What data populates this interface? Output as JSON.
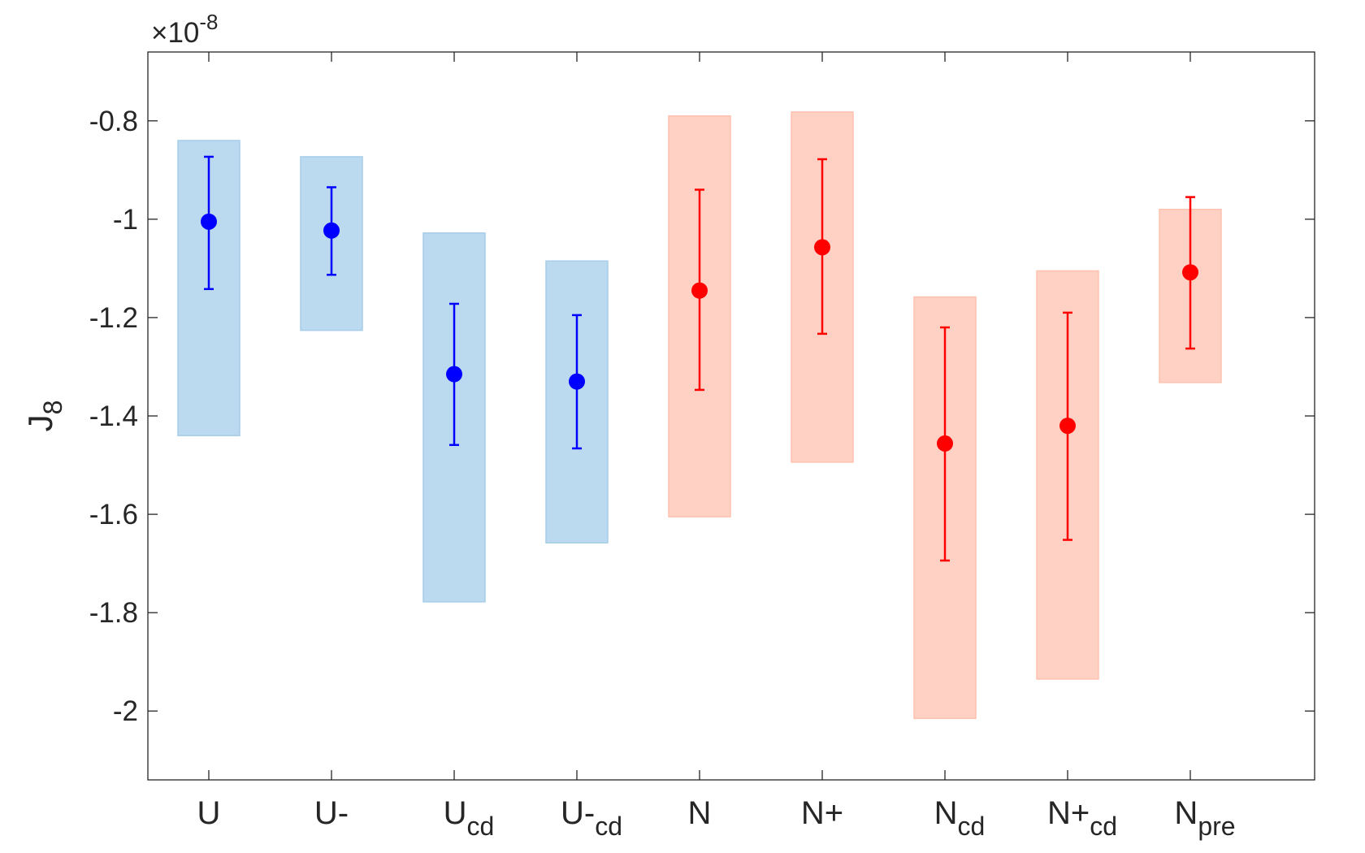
{
  "chart_data": {
    "type": "scatter",
    "ylabel": "J",
    "ylabel_subscript": "8",
    "axis_exponent": {
      "multiplier": "×10",
      "power": "-8"
    },
    "ylim": [
      -2.14,
      -0.66
    ],
    "yticks": [
      -2,
      -1.8,
      -1.6,
      -1.4,
      -1.2,
      -1,
      -0.8
    ],
    "ytick_labels": [
      "-2",
      "-1.8",
      "-1.6",
      "-1.4",
      "-1.2",
      "-1",
      "-0.8"
    ],
    "grid": false,
    "colors": {
      "blue_point": "#0000ff",
      "blue_band": "#a6cde9",
      "red_point": "#ff0000",
      "red_band": "#ffc2b0",
      "axis": "#262626"
    },
    "categories": [
      {
        "label": "U",
        "sub": "",
        "group": "blue",
        "value": -1.005,
        "err_low": -1.142,
        "err_high": -0.873,
        "band_low": -1.44,
        "band_high": -0.84
      },
      {
        "label": "U-",
        "sub": "",
        "group": "blue",
        "value": -1.023,
        "err_low": -1.113,
        "err_high": -0.935,
        "band_low": -1.226,
        "band_high": -0.873
      },
      {
        "label": "U",
        "sub": "cd",
        "group": "blue",
        "value": -1.315,
        "err_low": -1.459,
        "err_high": -1.172,
        "band_low": -1.778,
        "band_high": -1.028
      },
      {
        "label": "U-",
        "sub": "cd",
        "group": "blue",
        "value": -1.33,
        "err_low": -1.466,
        "err_high": -1.195,
        "band_low": -1.658,
        "band_high": -1.085
      },
      {
        "label": "N",
        "sub": "",
        "group": "red",
        "value": -1.145,
        "err_low": -1.347,
        "err_high": -0.94,
        "band_low": -1.605,
        "band_high": -0.79
      },
      {
        "label": "N+",
        "sub": "",
        "group": "red",
        "value": -1.057,
        "err_low": -1.233,
        "err_high": -0.878,
        "band_low": -1.494,
        "band_high": -0.782
      },
      {
        "label": "N",
        "sub": "cd",
        "group": "red",
        "value": -1.456,
        "err_low": -1.694,
        "err_high": -1.22,
        "band_low": -2.015,
        "band_high": -1.158
      },
      {
        "label": "N+",
        "sub": "cd",
        "group": "red",
        "value": -1.42,
        "err_low": -1.652,
        "err_high": -1.19,
        "band_low": -1.935,
        "band_high": -1.105
      },
      {
        "label": "N",
        "sub": "pre",
        "group": "red",
        "value": -1.108,
        "err_low": -1.263,
        "err_high": -0.955,
        "band_low": -1.332,
        "band_high": -0.98
      }
    ]
  }
}
